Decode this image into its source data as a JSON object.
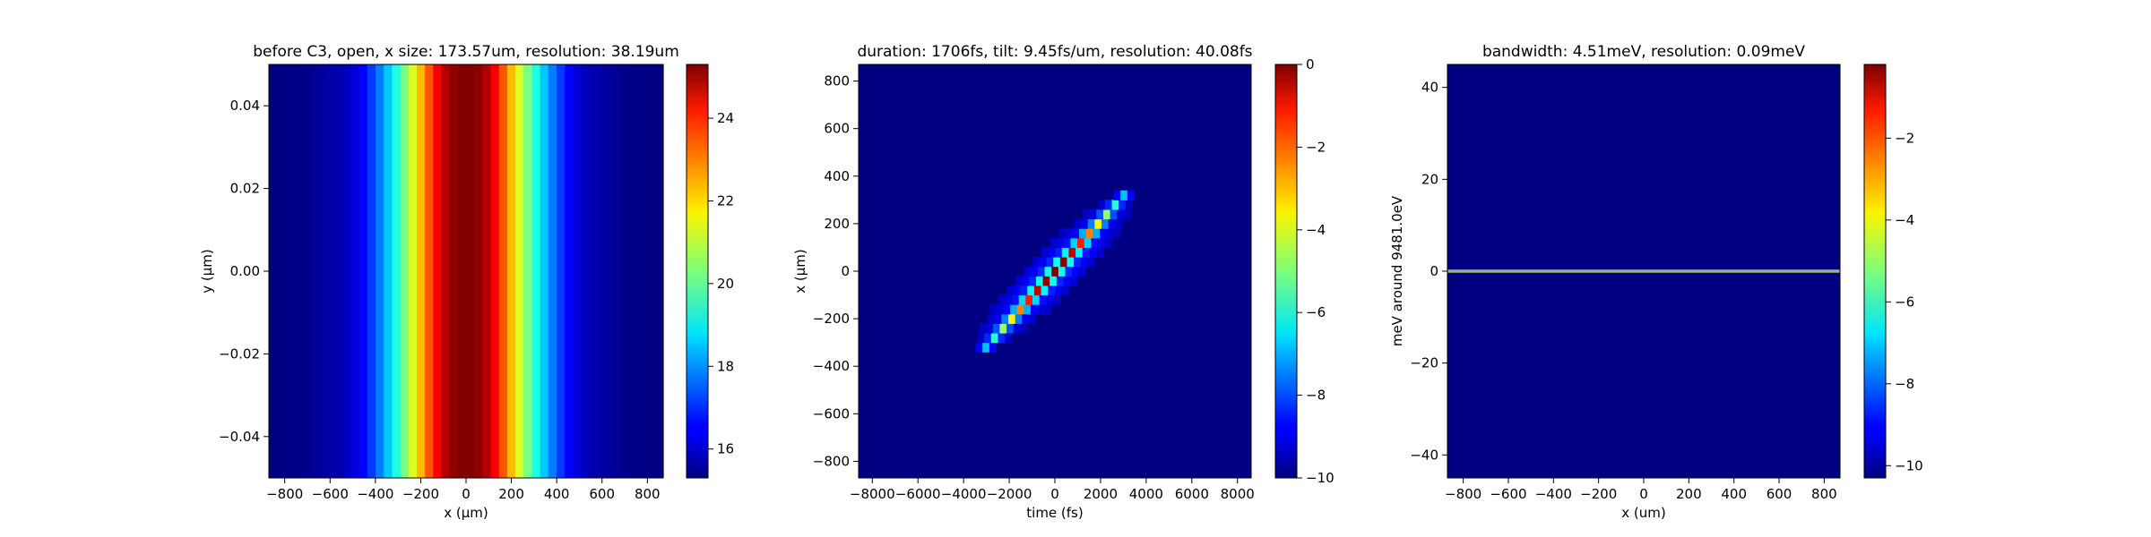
{
  "chart_data": [
    {
      "type": "heatmap",
      "title": "before C3, open, x size: 173.57um, resolution: 38.19um",
      "xlabel": "x (μm)",
      "ylabel": "y (μm)",
      "xlim": [
        -870,
        870
      ],
      "ylim": [
        -0.05,
        0.05
      ],
      "x_ticks": [
        -800,
        -600,
        -400,
        -200,
        0,
        200,
        400,
        600,
        800
      ],
      "x_tick_labels": [
        "−800",
        "−600",
        "−400",
        "−200",
        "0",
        "200",
        "400",
        "600",
        "800"
      ],
      "y_ticks": [
        -0.04,
        -0.02,
        0.0,
        0.02,
        0.04
      ],
      "y_tick_labels": [
        "−0.04",
        "−0.02",
        "0.00",
        "0.02",
        "0.04"
      ],
      "colormap": "jet",
      "vmin": 15.3,
      "vmax": 25.3,
      "colorbar_ticks": [
        16,
        18,
        20,
        22,
        24
      ],
      "colorbar_tick_labels": [
        "16",
        "18",
        "20",
        "22",
        "24"
      ],
      "profile": {
        "direction": "vertical-bands",
        "x": [
          -850,
          -700,
          -550,
          -500,
          -450,
          -400,
          -350,
          -300,
          -250,
          -200,
          -150,
          -100,
          -50,
          0,
          50,
          100,
          150,
          200,
          250,
          300,
          350,
          400,
          450,
          500,
          550,
          700,
          850
        ],
        "values": [
          15.3,
          15.4,
          15.8,
          16.1,
          16.6,
          17.4,
          18.4,
          19.5,
          20.8,
          22.2,
          23.6,
          24.7,
          25.2,
          25.3,
          25.2,
          24.7,
          23.6,
          22.2,
          20.8,
          19.5,
          18.4,
          17.4,
          16.6,
          16.1,
          15.8,
          15.4,
          15.3
        ]
      }
    },
    {
      "type": "heatmap",
      "title": "duration: 1706fs, tilt: 9.45fs/um, resolution: 40.08fs",
      "xlabel": "time (fs)",
      "ylabel": "x (μm)",
      "xlim": [
        -8600,
        8600
      ],
      "ylim": [
        -870,
        870
      ],
      "x_ticks": [
        -8000,
        -6000,
        -4000,
        -2000,
        0,
        2000,
        4000,
        6000,
        8000
      ],
      "x_tick_labels": [
        "−8000",
        "−6000",
        "−4000",
        "−2000",
        "0",
        "2000",
        "4000",
        "6000",
        "8000"
      ],
      "y_ticks": [
        -800,
        -600,
        -400,
        -200,
        0,
        200,
        400,
        600,
        800
      ],
      "y_tick_labels": [
        "−800",
        "−600",
        "−400",
        "−200",
        "0",
        "200",
        "400",
        "600",
        "800"
      ],
      "colormap": "jet",
      "vmin": -10,
      "vmax": 0,
      "colorbar_ticks": [
        -10,
        -8,
        -6,
        -4,
        -2,
        0
      ],
      "colorbar_tick_labels": [
        "−10",
        "−8",
        "−6",
        "−4",
        "−2",
        "0"
      ],
      "background_value": -10,
      "pulse": {
        "tilt_fs_per_um": 9.45,
        "center_time_fs": 0,
        "center_x_um": 0,
        "half_length_um": 320,
        "time_sigma_fs": 110,
        "x_sigma_um": 210
      }
    },
    {
      "type": "heatmap",
      "title": "bandwidth: 4.51meV, resolution: 0.09meV",
      "xlabel": "x (um)",
      "ylabel": "meV around 9481.0eV",
      "xlim": [
        -870,
        870
      ],
      "ylim": [
        -45,
        45
      ],
      "x_ticks": [
        -800,
        -600,
        -400,
        -200,
        0,
        200,
        400,
        600,
        800
      ],
      "x_tick_labels": [
        "−800",
        "−600",
        "−400",
        "−200",
        "0",
        "200",
        "400",
        "600",
        "800"
      ],
      "y_ticks": [
        -40,
        -20,
        0,
        20,
        40
      ],
      "y_tick_labels": [
        "−40",
        "−20",
        "0",
        "20",
        "40"
      ],
      "colormap": "jet",
      "vmin": -10.3,
      "vmax": -0.2,
      "colorbar_ticks": [
        -10,
        -8,
        -6,
        -4,
        -2
      ],
      "colorbar_tick_labels": [
        "−10",
        "−8",
        "−6",
        "−4",
        "−2"
      ],
      "background_value": -10.3,
      "line": {
        "y_meV": 0,
        "value": -7.2
      }
    }
  ]
}
